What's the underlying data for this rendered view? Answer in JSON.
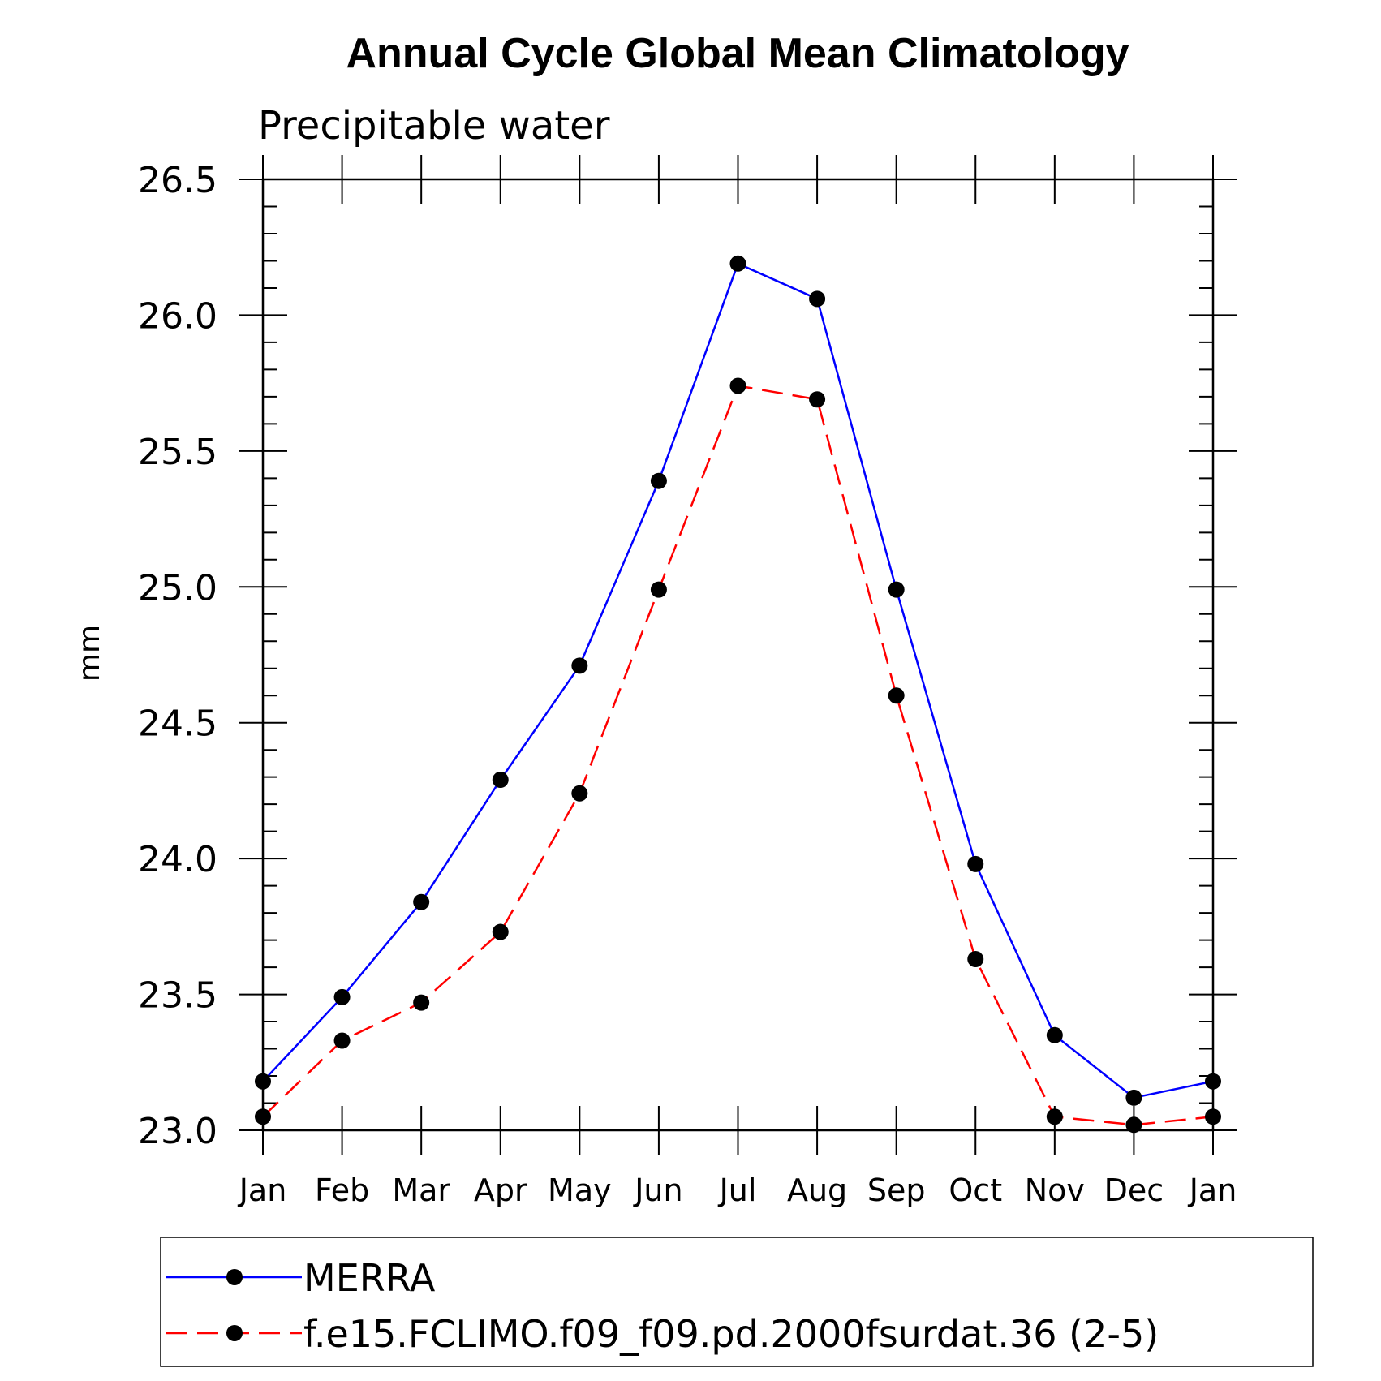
{
  "chart_data": {
    "type": "line",
    "title": "Annual Cycle Global Mean Climatology",
    "subtitle": "Precipitable water",
    "ylabel": "mm",
    "xlabel": "",
    "ylim": [
      23.0,
      26.5
    ],
    "yticks": [
      "23.0",
      "23.5",
      "24.0",
      "24.5",
      "25.0",
      "25.5",
      "26.0",
      "26.5"
    ],
    "categories": [
      "Jan",
      "Feb",
      "Mar",
      "Apr",
      "May",
      "Jun",
      "Jul",
      "Aug",
      "Sep",
      "Oct",
      "Nov",
      "Dec",
      "Jan"
    ],
    "series": [
      {
        "name": "MERRA",
        "color": "#0000ff",
        "dash": "solid",
        "marker": "filled-circle",
        "values": [
          23.18,
          23.49,
          23.84,
          24.29,
          24.71,
          25.39,
          26.19,
          26.06,
          24.99,
          23.98,
          23.35,
          23.12,
          23.18
        ]
      },
      {
        "name": "f.e15.FCLIMO.f09_f09.pd.2000fsurdat.36 (2-5)",
        "color": "#ff0000",
        "dash": "dashed",
        "marker": "filled-circle",
        "values": [
          23.05,
          23.33,
          23.47,
          23.73,
          24.24,
          24.99,
          25.74,
          25.69,
          24.6,
          23.63,
          23.05,
          23.02,
          23.05
        ]
      }
    ],
    "grid": false,
    "legend": "bottom"
  }
}
